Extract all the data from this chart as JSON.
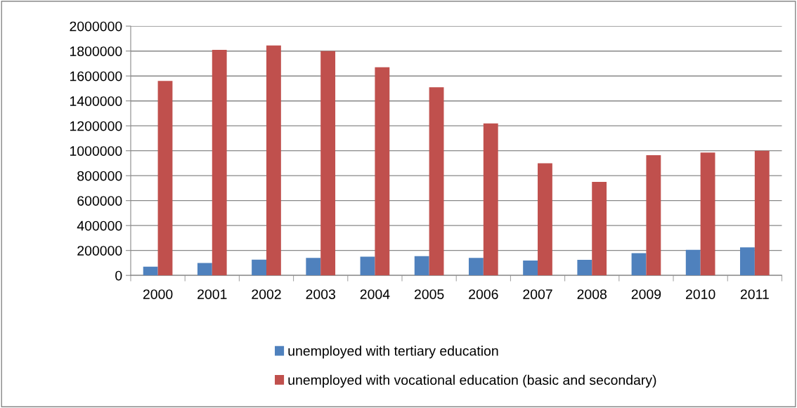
{
  "chart_data": {
    "type": "bar",
    "categories": [
      "2000",
      "2001",
      "2002",
      "2003",
      "2004",
      "2005",
      "2006",
      "2007",
      "2008",
      "2009",
      "2010",
      "2011"
    ],
    "series": [
      {
        "name": "unemployed with tertiary education",
        "color": "#4f81bd",
        "values": [
          70000,
          100000,
          127000,
          140000,
          150000,
          155000,
          140000,
          120000,
          125000,
          178000,
          205000,
          225000
        ]
      },
      {
        "name": "unemployed with vocational education (basic and secondary)",
        "color": "#c0504d",
        "values": [
          1560000,
          1810000,
          1845000,
          1800000,
          1670000,
          1510000,
          1220000,
          900000,
          750000,
          965000,
          985000,
          1000000
        ]
      }
    ],
    "ylim": [
      0,
      2000000
    ],
    "yticks": [
      0,
      200000,
      400000,
      600000,
      800000,
      1000000,
      1200000,
      1400000,
      1600000,
      1800000,
      2000000
    ],
    "grid": "y",
    "legend": "bottom"
  }
}
